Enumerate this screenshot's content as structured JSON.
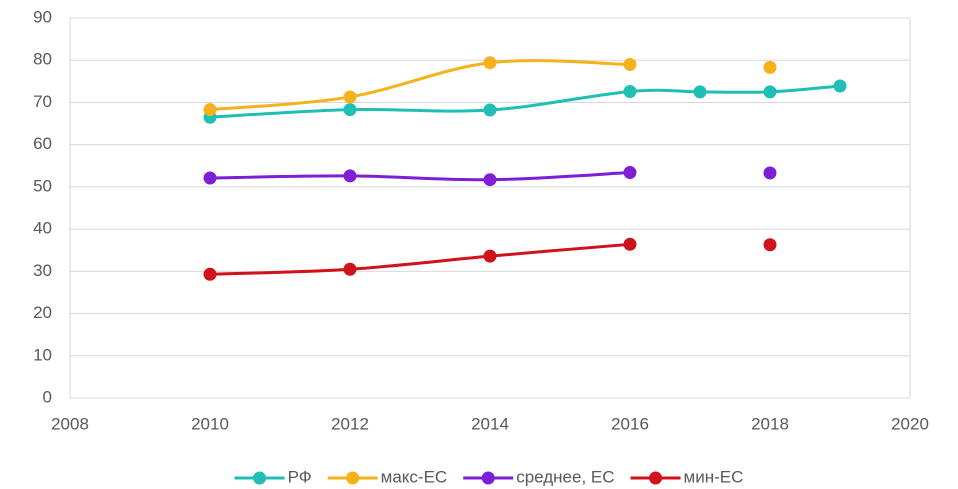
{
  "chart_data": {
    "type": "line",
    "x": [
      2010,
      2012,
      2014,
      2016,
      2017,
      2018,
      2019
    ],
    "series": [
      {
        "name": "РФ",
        "color": "#1fbfb6",
        "values": [
          66.5,
          68.3,
          68.2,
          72.6,
          72.5,
          72.5,
          73.9
        ]
      },
      {
        "name": "макс-ЕС",
        "color": "#f5b21b",
        "values": [
          68.3,
          71.3,
          79.4,
          79.0,
          null,
          78.3,
          null
        ]
      },
      {
        "name": "среднее, ЕС",
        "color": "#7e1fd6",
        "values": [
          52.1,
          52.6,
          51.7,
          53.4,
          null,
          53.3,
          null
        ]
      },
      {
        "name": "мин-ЕС",
        "color": "#d0121b",
        "values": [
          29.3,
          30.5,
          33.6,
          36.4,
          null,
          36.3,
          null
        ]
      }
    ],
    "xlim": [
      2008,
      2020
    ],
    "xticks": [
      2008,
      2010,
      2012,
      2014,
      2016,
      2018,
      2020
    ],
    "ylim": [
      0,
      90
    ],
    "yticks": [
      0,
      10,
      20,
      30,
      40,
      50,
      60,
      70,
      80,
      90
    ],
    "grid": true,
    "legend": "bottom"
  }
}
